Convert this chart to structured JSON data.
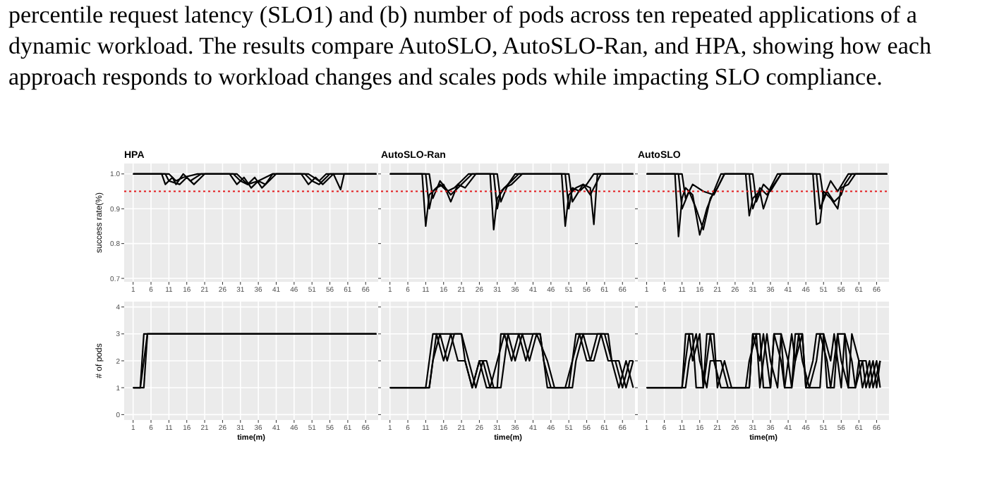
{
  "chart_data": [
    {
      "type": "line",
      "title": "HPA",
      "ylabel": "success rate(%)",
      "annotations": [
        "percentile request latency (SLO1) and (b) number of pods across ten repeated applications of a dynamic workload. The results compare AutoSLO, AutoSLO-Ran, and HPA, showing how each approach responds to workload changes and scales pods while impacting SLO compliance."
      ],
      "xlim": [
        -1.5,
        69.5
      ],
      "xticks": [
        1,
        6,
        11,
        16,
        21,
        26,
        31,
        36,
        41,
        46,
        51,
        56,
        61,
        66
      ],
      "ylim": [
        0.69,
        1.03
      ],
      "yticks": [
        0.7,
        0.8,
        0.9,
        {
          "value": 1,
          "label": "1.0"
        }
      ],
      "grid": true,
      "ref_lines": [
        {
          "axis": "y",
          "value": 0.95,
          "color": "#e41a1c",
          "line_style": "dotted"
        }
      ],
      "series": [
        {
          "color": "#000000",
          "x": [
            1,
            9,
            10,
            12,
            13,
            15,
            17,
            20,
            22,
            28,
            30,
            32,
            34,
            36,
            38,
            40,
            48,
            50,
            52,
            54,
            57,
            59,
            60,
            69
          ],
          "values": [
            1,
            1,
            0.97,
            0.99,
            0.97,
            1,
            0.98,
            1,
            1,
            1,
            0.97,
            0.99,
            0.96,
            0.98,
            0.97,
            1,
            1,
            0.97,
            0.99,
            0.97,
            1,
            0.955,
            1,
            1
          ]
        },
        {
          "color": "#000000",
          "x": [
            1,
            10,
            11,
            14,
            16,
            18,
            21,
            29,
            31,
            33,
            35,
            37,
            39,
            41,
            49,
            51,
            53,
            56,
            69
          ],
          "values": [
            1,
            1,
            0.98,
            0.97,
            0.99,
            0.97,
            1,
            1,
            0.98,
            0.97,
            0.99,
            0.96,
            0.98,
            1,
            1,
            0.98,
            0.97,
            1,
            1
          ]
        },
        {
          "color": "#000000",
          "x": [
            1,
            11,
            13,
            15,
            19,
            30,
            33,
            36,
            40,
            50,
            53,
            55,
            69
          ],
          "values": [
            1,
            1,
            0.98,
            0.99,
            1,
            1,
            0.97,
            0.98,
            1,
            1,
            0.98,
            1,
            1
          ]
        }
      ]
    },
    {
      "type": "line",
      "title": "AutoSLO-Ran",
      "tick_labels": "x",
      "xlim": [
        -1.5,
        69.5
      ],
      "xticks": [
        1,
        6,
        11,
        16,
        21,
        26,
        31,
        36,
        41,
        46,
        51,
        56,
        61,
        66
      ],
      "ylim": [
        0.69,
        1.03
      ],
      "yticks": [
        0.7,
        0.8,
        0.9,
        1
      ],
      "grid": true,
      "ref_lines": [
        {
          "axis": "y",
          "value": 0.95,
          "color": "#e41a1c",
          "line_style": "dotted"
        }
      ],
      "series": [
        {
          "color": "#000000",
          "x": [
            1,
            10,
            11,
            12,
            14,
            16,
            18,
            20,
            22,
            25,
            29,
            30,
            31,
            33,
            35,
            38,
            49,
            50,
            51,
            53,
            55,
            57,
            58,
            59,
            69
          ],
          "values": [
            1,
            1,
            0.85,
            0.94,
            0.96,
            0.97,
            0.92,
            0.97,
            0.96,
            1,
            1,
            0.84,
            0.93,
            0.96,
            0.97,
            1,
            1,
            0.85,
            0.94,
            0.96,
            0.97,
            0.96,
            0.855,
            1,
            1
          ]
        },
        {
          "color": "#000000",
          "x": [
            1,
            11,
            12,
            13,
            15,
            17,
            19,
            21,
            23,
            30,
            31,
            32,
            34,
            36,
            50,
            51,
            52,
            54,
            56,
            58,
            69
          ],
          "values": [
            1,
            1,
            0.9,
            0.95,
            0.97,
            0.95,
            0.96,
            0.98,
            1,
            1,
            0.9,
            0.95,
            0.97,
            1,
            1,
            0.9,
            0.96,
            0.95,
            0.97,
            1,
            1
          ]
        },
        {
          "color": "#000000",
          "x": [
            1,
            12,
            13,
            15,
            18,
            21,
            24,
            31,
            32,
            34,
            37,
            51,
            52,
            55,
            57,
            60,
            69
          ],
          "values": [
            1,
            1,
            0.93,
            0.98,
            0.94,
            0.97,
            1,
            1,
            0.92,
            0.97,
            1,
            1,
            0.92,
            0.97,
            0.94,
            1,
            1
          ]
        }
      ]
    },
    {
      "type": "line",
      "title": "AutoSLO",
      "tick_labels": "x",
      "xlim": [
        -1.5,
        69.5
      ],
      "xticks": [
        1,
        6,
        11,
        16,
        21,
        26,
        31,
        36,
        41,
        46,
        51,
        56,
        61,
        66
      ],
      "ylim": [
        0.69,
        1.03
      ],
      "yticks": [
        0.7,
        0.8,
        0.9,
        1
      ],
      "grid": true,
      "ref_lines": [
        {
          "axis": "y",
          "value": 0.95,
          "color": "#e41a1c",
          "line_style": "dotted"
        }
      ],
      "series": [
        {
          "color": "#000000",
          "x": [
            1,
            9,
            10,
            11,
            12,
            14,
            16,
            18,
            20,
            22,
            29,
            30,
            31,
            33,
            34,
            36,
            38,
            48,
            49,
            50,
            51,
            53,
            55,
            56,
            58,
            60,
            69
          ],
          "values": [
            1,
            1,
            0.82,
            0.93,
            0.96,
            0.94,
            0.825,
            0.9,
            0.95,
            1,
            1,
            0.88,
            0.93,
            0.95,
            0.9,
            0.96,
            1,
            1,
            0.855,
            0.86,
            0.95,
            0.93,
            0.9,
            0.96,
            0.97,
            1,
            1
          ]
        },
        {
          "color": "#000000",
          "x": [
            1,
            10,
            11,
            13,
            15,
            17,
            19,
            21,
            23,
            30,
            31,
            33,
            35,
            37,
            39,
            49,
            50,
            52,
            54,
            56,
            57,
            59,
            69
          ],
          "values": [
            1,
            1,
            0.9,
            0.95,
            0.9,
            0.84,
            0.93,
            0.96,
            1,
            1,
            0.9,
            0.96,
            0.94,
            0.97,
            1,
            1,
            0.9,
            0.95,
            0.92,
            0.94,
            0.97,
            1,
            1
          ]
        },
        {
          "color": "#000000",
          "x": [
            1,
            11,
            12,
            14,
            17,
            20,
            23,
            31,
            32,
            34,
            36,
            39,
            50,
            51,
            53,
            55,
            58,
            69
          ],
          "values": [
            1,
            1,
            0.93,
            0.97,
            0.95,
            0.94,
            1,
            1,
            0.92,
            0.97,
            0.95,
            1,
            1,
            0.93,
            0.98,
            0.95,
            1,
            1
          ]
        }
      ]
    },
    {
      "type": "line",
      "ylabel": "# of pods",
      "xlabel": "time(m)",
      "xlim": [
        -1.5,
        69.5
      ],
      "xticks": [
        1,
        6,
        11,
        16,
        21,
        26,
        31,
        36,
        41,
        46,
        51,
        56,
        61,
        66
      ],
      "ylim": [
        -0.2,
        4.2
      ],
      "yticks": [
        0,
        1,
        2,
        3,
        4
      ],
      "grid": true,
      "series": [
        {
          "color": "#000000",
          "x": [
            1,
            3,
            4,
            69
          ],
          "values": [
            1,
            1,
            3,
            3
          ]
        },
        {
          "color": "#000000",
          "x": [
            1,
            4,
            5,
            69
          ],
          "values": [
            1,
            1,
            3,
            3
          ]
        },
        {
          "color": "#000000",
          "x": [
            1,
            3,
            5,
            69
          ],
          "values": [
            1,
            1,
            3,
            3
          ]
        }
      ]
    },
    {
      "type": "line",
      "xlabel": "time(m)",
      "tick_labels": "x",
      "xlim": [
        -1.5,
        69.5
      ],
      "xticks": [
        1,
        6,
        11,
        16,
        21,
        26,
        31,
        36,
        41,
        46,
        51,
        56,
        61,
        66
      ],
      "ylim": [
        -0.2,
        4.2
      ],
      "yticks": [
        0,
        1,
        2,
        3,
        4
      ],
      "grid": true,
      "series": [
        {
          "color": "#000000",
          "x": [
            1,
            11,
            13,
            21,
            22,
            24,
            26,
            28,
            31,
            32,
            43,
            44,
            46,
            51,
            53,
            62,
            63,
            65,
            67,
            69
          ],
          "values": [
            1,
            1,
            3,
            3,
            2,
            1,
            2,
            1,
            1,
            3,
            3,
            2,
            1,
            1,
            3,
            3,
            2,
            1,
            2,
            1
          ]
        },
        {
          "color": "#000000",
          "x": [
            1,
            12,
            13,
            15,
            17,
            19,
            21,
            23,
            25,
            27,
            29,
            31,
            33,
            35,
            37,
            39,
            41,
            43,
            45,
            52,
            53,
            55,
            57,
            59,
            61,
            63,
            65,
            67,
            69
          ],
          "values": [
            1,
            1,
            2,
            3,
            2,
            3,
            3,
            2,
            1,
            2,
            1,
            2,
            3,
            2,
            3,
            2,
            3,
            3,
            1,
            1,
            2,
            3,
            2,
            3,
            3,
            2,
            2,
            1,
            2
          ]
        },
        {
          "color": "#000000",
          "x": [
            1,
            12,
            14,
            16,
            18,
            20,
            22,
            24,
            26,
            28,
            30,
            32,
            34,
            36,
            38,
            40,
            42,
            45,
            47,
            50,
            52,
            54,
            56,
            58,
            60,
            62,
            64,
            66,
            68,
            69
          ],
          "values": [
            1,
            1,
            3,
            2,
            3,
            2,
            2,
            1,
            2,
            2,
            1,
            1,
            3,
            2,
            3,
            2,
            3,
            2,
            1,
            1,
            2,
            3,
            2,
            2,
            3,
            2,
            2,
            1,
            2,
            2
          ]
        }
      ]
    },
    {
      "type": "line",
      "xlabel": "time(m)",
      "tick_labels": "x",
      "xlim": [
        -1.5,
        69.5
      ],
      "xticks": [
        1,
        6,
        11,
        16,
        21,
        26,
        31,
        36,
        41,
        46,
        51,
        56,
        61,
        66
      ],
      "ylim": [
        -0.2,
        4.2
      ],
      "yticks": [
        0,
        1,
        2,
        3,
        4
      ],
      "grid": true,
      "series": [
        {
          "color": "#000000",
          "x": [
            1,
            11,
            12,
            14,
            15,
            17,
            18,
            20,
            21,
            23,
            25,
            30,
            31,
            33,
            34,
            36,
            37,
            39,
            40,
            42,
            43,
            45,
            46,
            48,
            49,
            51,
            52,
            54,
            55,
            57,
            58,
            60,
            61,
            63,
            64,
            66,
            67
          ],
          "values": [
            1,
            1,
            3,
            3,
            1,
            1,
            3,
            3,
            1,
            2,
            1,
            1,
            3,
            3,
            1,
            1,
            3,
            3,
            1,
            1,
            3,
            3,
            1,
            2,
            3,
            3,
            1,
            1,
            3,
            3,
            1,
            1,
            2,
            2,
            1,
            2,
            1
          ]
        },
        {
          "color": "#000000",
          "x": [
            1,
            12,
            13,
            15,
            16,
            18,
            19,
            22,
            24,
            29,
            30,
            32,
            33,
            35,
            36,
            38,
            39,
            41,
            42,
            44,
            45,
            47,
            49,
            50,
            52,
            53,
            55,
            56,
            58,
            59,
            61,
            62,
            64,
            65,
            67
          ],
          "values": [
            1,
            1,
            2,
            3,
            2,
            1,
            2,
            2,
            1,
            1,
            2,
            3,
            1,
            3,
            2,
            1,
            3,
            2,
            1,
            3,
            2,
            1,
            2,
            3,
            2,
            1,
            3,
            2,
            1,
            3,
            2,
            1,
            2,
            1,
            2
          ]
        },
        {
          "color": "#000000",
          "x": [
            1,
            11,
            13,
            14,
            16,
            17,
            19,
            20,
            22,
            25,
            30,
            31,
            33,
            34,
            36,
            37,
            39,
            40,
            42,
            43,
            45,
            46,
            48,
            50,
            51,
            53,
            54,
            56,
            57,
            59,
            60,
            62,
            63,
            65,
            66,
            67
          ],
          "values": [
            1,
            1,
            3,
            2,
            3,
            1,
            3,
            2,
            1,
            1,
            1,
            3,
            2,
            3,
            1,
            3,
            2,
            1,
            3,
            2,
            3,
            1,
            1,
            1,
            3,
            2,
            3,
            1,
            3,
            2,
            1,
            2,
            1,
            2,
            1,
            2
          ]
        }
      ]
    }
  ]
}
